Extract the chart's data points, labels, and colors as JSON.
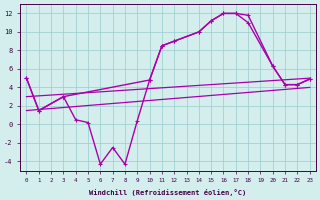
{
  "xlabel": "Windchill (Refroidissement éolien,°C)",
  "background_color": "#d4eeee",
  "line_color": "#aa00aa",
  "grid_color": "#99cccc",
  "xlim": [
    -0.5,
    23.5
  ],
  "ylim": [
    -5.0,
    13.0
  ],
  "xticks": [
    0,
    1,
    2,
    3,
    4,
    5,
    6,
    7,
    8,
    9,
    10,
    11,
    12,
    13,
    14,
    15,
    16,
    17,
    18,
    19,
    20,
    21,
    22,
    23
  ],
  "yticks": [
    -4,
    -2,
    0,
    2,
    4,
    6,
    8,
    10,
    12
  ],
  "series": [
    {
      "x": [
        0,
        1,
        3,
        4,
        5,
        6,
        7,
        8,
        9,
        10,
        11,
        12,
        14,
        15,
        16,
        17,
        18,
        20,
        21,
        22,
        23
      ],
      "y": [
        5.0,
        1.5,
        3.0,
        0.5,
        0.2,
        -4.3,
        -2.5,
        -4.3,
        0.4,
        4.8,
        8.5,
        9.0,
        10.0,
        11.2,
        12.0,
        12.0,
        11.8,
        6.3,
        4.3,
        4.3,
        4.9
      ],
      "marker": true,
      "lw": 1.0
    },
    {
      "x": [
        0,
        1,
        3,
        10,
        11,
        12,
        14,
        15,
        16,
        17,
        18,
        20,
        21,
        22,
        23
      ],
      "y": [
        5.0,
        1.5,
        3.0,
        4.8,
        8.5,
        9.0,
        10.0,
        11.2,
        12.0,
        12.0,
        11.0,
        6.3,
        4.3,
        4.3,
        4.9
      ],
      "marker": true,
      "lw": 1.0
    },
    {
      "x": [
        0,
        23
      ],
      "y": [
        1.5,
        4.0
      ],
      "marker": false,
      "lw": 0.9
    },
    {
      "x": [
        0,
        23
      ],
      "y": [
        3.0,
        5.0
      ],
      "marker": false,
      "lw": 0.9
    }
  ]
}
